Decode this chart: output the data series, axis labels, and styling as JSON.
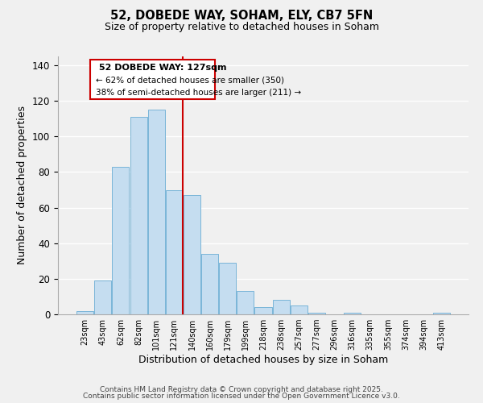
{
  "title": "52, DOBEDE WAY, SOHAM, ELY, CB7 5FN",
  "subtitle": "Size of property relative to detached houses in Soham",
  "xlabel": "Distribution of detached houses by size in Soham",
  "ylabel": "Number of detached properties",
  "bar_labels": [
    "23sqm",
    "43sqm",
    "62sqm",
    "82sqm",
    "101sqm",
    "121sqm",
    "140sqm",
    "160sqm",
    "179sqm",
    "199sqm",
    "218sqm",
    "238sqm",
    "257sqm",
    "277sqm",
    "296sqm",
    "316sqm",
    "335sqm",
    "355sqm",
    "374sqm",
    "394sqm",
    "413sqm"
  ],
  "bar_heights": [
    2,
    19,
    83,
    111,
    115,
    70,
    67,
    34,
    29,
    13,
    4,
    8,
    5,
    1,
    0,
    1,
    0,
    0,
    0,
    0,
    1
  ],
  "bar_color": "#c5ddf0",
  "bar_edge_color": "#7ab5d8",
  "background_color": "#f0f0f0",
  "grid_color": "#ffffff",
  "annotation_title": "52 DOBEDE WAY: 127sqm",
  "annotation_line1": "← 62% of detached houses are smaller (350)",
  "annotation_line2": "38% of semi-detached houses are larger (211) →",
  "annotation_box_color": "#ffffff",
  "annotation_border_color": "#cc0000",
  "ylim": [
    0,
    145
  ],
  "yticks": [
    0,
    20,
    40,
    60,
    80,
    100,
    120,
    140
  ],
  "footer1": "Contains HM Land Registry data © Crown copyright and database right 2025.",
  "footer2": "Contains public sector information licensed under the Open Government Licence v3.0."
}
